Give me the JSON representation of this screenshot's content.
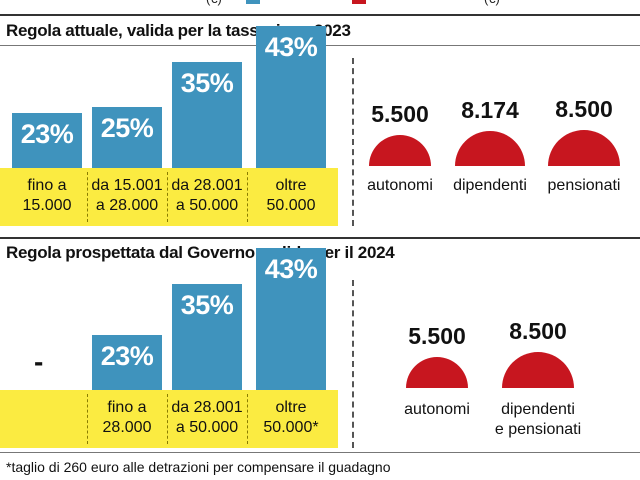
{
  "header_strip": {
    "partial_text": "(€)"
  },
  "chart_data": [
    {
      "type": "bar",
      "title": "Regola attuale, valida per la tassazione 2023",
      "categories": [
        "fino a 15.000",
        "da 15.001 a 28.000",
        "da 28.001 a 50.000",
        "oltre 50.000"
      ],
      "category_lines": [
        [
          "fino a",
          "15.000"
        ],
        [
          "da 15.001",
          "a 28.000"
        ],
        [
          "da 28.001",
          "a 50.000"
        ],
        [
          "oltre",
          "50.000"
        ]
      ],
      "values": [
        23,
        25,
        35,
        43
      ],
      "value_labels": [
        "23%",
        "25%",
        "35%",
        "43%"
      ],
      "ylim": [
        0,
        50
      ],
      "colors": {
        "bar": "#3f93bd",
        "band": "#fbeb41"
      }
    },
    {
      "type": "bar",
      "title": "Regola attuale, valida per la tassazione 2023",
      "categories": [
        "autonomi",
        "dipendenti",
        "pensionati"
      ],
      "values": [
        5500,
        8174,
        8500
      ],
      "value_labels": [
        "5.500",
        "8.174",
        "8.500"
      ],
      "colors": {
        "dome": "#c7161f"
      }
    },
    {
      "type": "bar",
      "title": "Regola prospettata dal Governo, valida per il 2024",
      "categories": [
        "",
        "fino a 28.000",
        "da 28.001 a 50.000",
        "oltre 50.000*"
      ],
      "category_lines": [
        [
          "",
          ""
        ],
        [
          "fino a",
          "28.000"
        ],
        [
          "da 28.001",
          "a 50.000"
        ],
        [
          "oltre",
          "50.000*"
        ]
      ],
      "values": [
        null,
        23,
        35,
        43
      ],
      "value_labels": [
        "-",
        "23%",
        "35%",
        "43%"
      ],
      "ylim": [
        0,
        50
      ],
      "colors": {
        "bar": "#3f93bd",
        "band": "#fbeb41"
      }
    },
    {
      "type": "bar",
      "title": "Regola prospettata dal Governo, valida per il 2024",
      "categories": [
        "autonomi",
        "dipendenti e pensionati"
      ],
      "category_lines": [
        [
          "autonomi"
        ],
        [
          "dipendenti",
          "e pensionati"
        ]
      ],
      "values": [
        5500,
        8500
      ],
      "value_labels": [
        "5.500",
        "8.500"
      ],
      "colors": {
        "dome": "#c7161f"
      }
    }
  ],
  "sections": {
    "s2023": {
      "title": "Regola attuale, valida per la tassazione 2023"
    },
    "s2024": {
      "title": "Regola prospettata dal Governo, valida per il 2024"
    }
  },
  "footnote": "*taglio di 260 euro alle detrazioni per compensare il guadagno"
}
